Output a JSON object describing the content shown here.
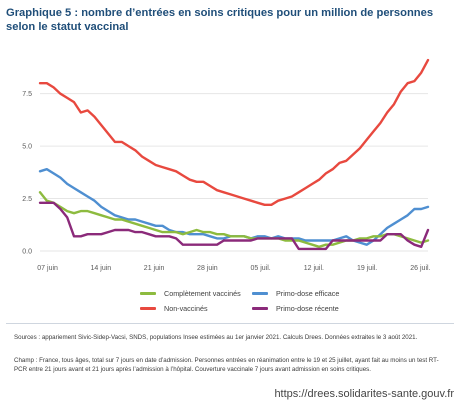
{
  "title": "Graphique 5 : nombre d’entrées en soins critiques pour un million de personnes selon le statut vaccinal",
  "chart_data": {
    "type": "line",
    "title": "Graphique 5 : nombre d’entrées en soins critiques pour un million de personnes selon le statut vaccinal",
    "xlabel": "",
    "ylabel": "",
    "ylim": [
      0,
      9.2
    ],
    "yticks": [
      0.0,
      2.5,
      5.0,
      7.5
    ],
    "ytick_labels": [
      "0.0",
      "2.5",
      "5.0",
      "7.5"
    ],
    "xlim": [
      0,
      51
    ],
    "xticks": [
      1,
      8,
      15,
      22,
      29,
      36,
      43,
      50
    ],
    "xtick_labels": [
      "07 juin",
      "14 juin",
      "21 juin",
      "28 juin",
      "05 juil.",
      "12 juil.",
      "19 juil.",
      "26 juil."
    ],
    "grid": "horizontal",
    "legend_position": "bottom",
    "series": [
      {
        "name": "Non-vaccinés",
        "color": "#e8493f",
        "values": [
          8.0,
          8.0,
          7.8,
          7.5,
          7.3,
          7.1,
          6.6,
          6.7,
          6.4,
          6.0,
          5.6,
          5.2,
          5.2,
          5.0,
          4.8,
          4.5,
          4.3,
          4.1,
          4.0,
          3.9,
          3.8,
          3.6,
          3.4,
          3.3,
          3.3,
          3.1,
          2.9,
          2.8,
          2.7,
          2.6,
          2.5,
          2.4,
          2.3,
          2.2,
          2.2,
          2.4,
          2.5,
          2.6,
          2.8,
          3.0,
          3.2,
          3.4,
          3.7,
          3.9,
          4.2,
          4.3,
          4.6,
          4.9,
          5.3,
          5.7,
          6.1,
          6.6,
          7.0,
          7.6,
          8.0,
          8.1,
          8.5,
          9.1
        ]
      },
      {
        "name": "Primo-dose efficace",
        "color": "#4f8fd1",
        "values": [
          3.8,
          3.9,
          3.7,
          3.5,
          3.2,
          3.0,
          2.8,
          2.6,
          2.4,
          2.1,
          1.9,
          1.7,
          1.6,
          1.5,
          1.5,
          1.4,
          1.3,
          1.2,
          1.2,
          1.0,
          0.9,
          0.9,
          0.8,
          0.8,
          0.8,
          0.7,
          0.6,
          0.6,
          0.7,
          0.7,
          0.7,
          0.6,
          0.7,
          0.7,
          0.6,
          0.7,
          0.6,
          0.6,
          0.6,
          0.5,
          0.5,
          0.5,
          0.5,
          0.5,
          0.6,
          0.7,
          0.5,
          0.4,
          0.3,
          0.5,
          0.8,
          1.1,
          1.3,
          1.5,
          1.7,
          2.0,
          2.0,
          2.1
        ]
      },
      {
        "name": "Complètement vaccinés",
        "color": "#8dbb3f",
        "values": [
          2.8,
          2.4,
          2.3,
          2.1,
          1.9,
          1.8,
          1.9,
          1.9,
          1.8,
          1.7,
          1.6,
          1.5,
          1.5,
          1.4,
          1.3,
          1.2,
          1.1,
          1.0,
          0.9,
          0.9,
          0.9,
          0.8,
          0.9,
          1.0,
          0.9,
          0.9,
          0.8,
          0.8,
          0.7,
          0.7,
          0.7,
          0.6,
          0.6,
          0.6,
          0.6,
          0.6,
          0.5,
          0.5,
          0.5,
          0.4,
          0.3,
          0.2,
          0.3,
          0.3,
          0.4,
          0.5,
          0.5,
          0.6,
          0.6,
          0.7,
          0.7,
          0.8,
          0.8,
          0.7,
          0.6,
          0.5,
          0.4,
          0.5
        ]
      },
      {
        "name": "Primo-dose récente",
        "color": "#8b2a7a",
        "values": [
          2.3,
          2.3,
          2.3,
          2.0,
          1.6,
          0.7,
          0.7,
          0.8,
          0.8,
          0.8,
          0.9,
          1.0,
          1.0,
          1.0,
          0.9,
          0.9,
          0.8,
          0.7,
          0.7,
          0.7,
          0.6,
          0.3,
          0.3,
          0.3,
          0.3,
          0.3,
          0.3,
          0.5,
          0.5,
          0.5,
          0.5,
          0.5,
          0.6,
          0.6,
          0.6,
          0.6,
          0.6,
          0.6,
          0.1,
          0.1,
          0.1,
          0.1,
          0.1,
          0.5,
          0.5,
          0.5,
          0.5,
          0.5,
          0.5,
          0.5,
          0.5,
          0.8,
          0.8,
          0.8,
          0.5,
          0.3,
          0.2,
          1.0
        ]
      }
    ]
  },
  "legend": [
    {
      "label": "Complètement vaccinés",
      "color": "#8dbb3f"
    },
    {
      "label": "Primo-dose efficace",
      "color": "#4f8fd1"
    },
    {
      "label": "Non-vaccinés",
      "color": "#e8493f"
    },
    {
      "label": "Primo-dose récente",
      "color": "#8b2a7a"
    }
  ],
  "sources": "Sources : appariement Sivic-Sidep-Vacsi, SNDS, populations Insee estimées au 1er janvier 2021. Calculs Drees. Données extraites le 3 août 2021.",
  "champ": "Champ : France, tous âges, total sur 7 jours en date d’admission. Personnes entrées en réanimation entre le 19 et 25 juillet, ayant fait au moins un test RT-PCR entre 21 jours avant et 21 jours après l’admission à l’hôpital. Couverture vaccinale 7 jours avant admission en soins critiques.",
  "footer_url": "https://drees.solidarites-sante.gouv.fr"
}
